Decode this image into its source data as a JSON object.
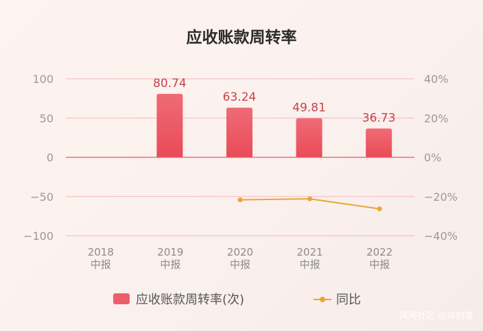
{
  "watermark": "风闻社区 @锌刻度",
  "chart_data": {
    "type": "bar",
    "title": "应收账款周转率",
    "categories": [
      [
        "2018",
        "中报"
      ],
      [
        "2019",
        "中报"
      ],
      [
        "2020",
        "中报"
      ],
      [
        "2021",
        "中报"
      ],
      [
        "2022",
        "中报"
      ]
    ],
    "series": [
      {
        "name": "应收账款周转率(次)",
        "type": "bar",
        "axis": "left",
        "color": "#ec5f6a",
        "values": [
          null,
          80.74,
          63.24,
          49.81,
          36.73
        ],
        "labels": [
          "",
          "80.74",
          "63.24",
          "49.81",
          "36.73"
        ]
      },
      {
        "name": "同比",
        "type": "line",
        "axis": "right",
        "color": "#e9a53a",
        "values": [
          null,
          null,
          -21.7,
          -21.2,
          -26.3
        ]
      }
    ],
    "ylim_left": [
      -100,
      100
    ],
    "yticks_left": [
      100,
      50,
      0,
      -50,
      -100
    ],
    "ytick_labels_left": [
      "100",
      "50",
      "0",
      "−50",
      "−100"
    ],
    "ylim_right": [
      -40,
      40
    ],
    "yticks_right": [
      40,
      20,
      0,
      -20,
      -40
    ],
    "ytick_labels_right": [
      "40%",
      "20%",
      "0%",
      "−20%",
      "−40%"
    ],
    "grid": true,
    "grid_color": "#f3b8bf",
    "zero_line_color": "#e9707b",
    "legend_position": "bottom"
  }
}
